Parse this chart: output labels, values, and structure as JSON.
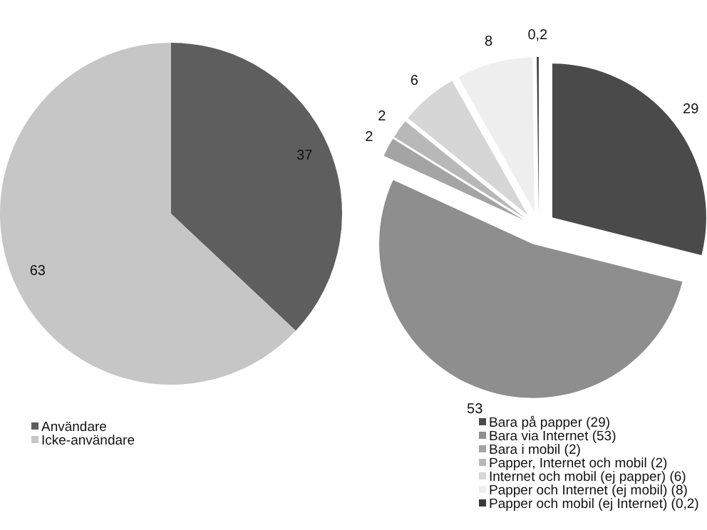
{
  "chart_data": [
    {
      "type": "pie",
      "categories": [
        "Användare",
        "Icke-användare"
      ],
      "values": [
        37,
        63
      ],
      "colors": [
        "#5e5e5e",
        "#c6c6c6"
      ],
      "data_labels": true,
      "legend": "bottom left"
    },
    {
      "type": "pie",
      "categories": [
        "Bara på papper (29)",
        "Bara via Internet (53)",
        "Bara i mobil (2)",
        "Papper, Internet och mobil (2)",
        "Internet och mobil (ej papper) (6)",
        "Papper och Internet (ej mobil) (8)",
        "Papper och mobil (ej Internet) (0,2)"
      ],
      "values": [
        29,
        53,
        2,
        2,
        6,
        8,
        0.2
      ],
      "colors": [
        "#4a4a4a",
        "#8e8e8e",
        "#a4a4a4",
        "#b8b8b8",
        "#d6d6d6",
        "#eeeeee",
        "#3a3a3a"
      ],
      "value_labels": [
        "29",
        "53",
        "2",
        "2",
        "6",
        "8",
        "0,2"
      ],
      "legend": "bottom right"
    }
  ]
}
